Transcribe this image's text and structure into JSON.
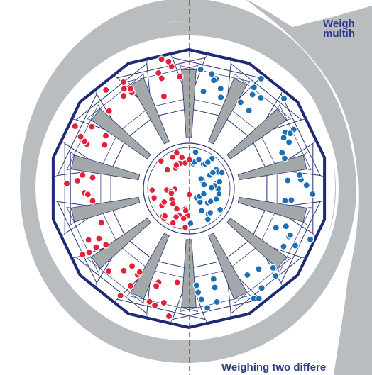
{
  "callout_top": {
    "line1": "Weigh",
    "line2": "multih"
  },
  "callout_bottom": {
    "text": "Weighing two differe"
  },
  "diagram": {
    "heads_per_side": 7,
    "left_product": "red",
    "right_product": "blue"
  },
  "colors": {
    "ring": "#b9bdbf",
    "outline": "#1d2a78",
    "line": "#2a3574",
    "chute": "#a3a8ab",
    "red_dot": "#e0233a",
    "blue_dot": "#1c6fb6",
    "divider": "#d22030"
  }
}
